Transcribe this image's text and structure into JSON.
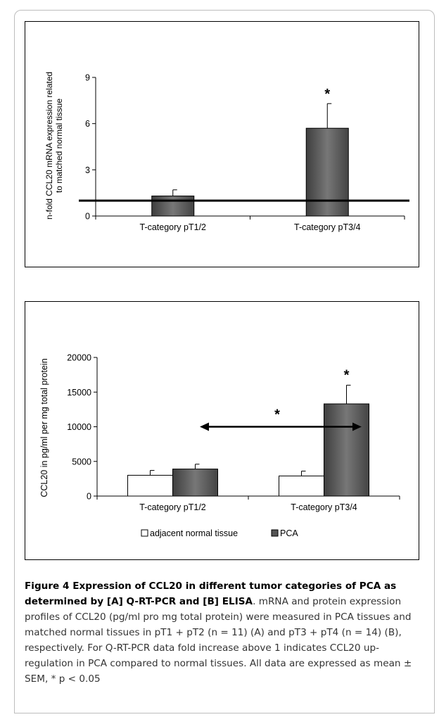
{
  "chart_data": [
    {
      "type": "bar",
      "panel": "A",
      "ylabel_line1": "n-fold CCL20 mRNA expression related",
      "ylabel_line2": "to matched normal tissue",
      "ylim": [
        0,
        9
      ],
      "yticks": [
        "0",
        "3",
        "6",
        "9"
      ],
      "categories": [
        "T-category pT1/2",
        "T-category pT3/4"
      ],
      "series": [
        {
          "values": [
            1.3,
            5.7
          ],
          "errors": [
            0.4,
            1.6
          ],
          "color": "#5a5a5a"
        }
      ],
      "reference_line": 1,
      "annotations": [
        {
          "text": "*",
          "category": "T-category pT3/4"
        }
      ]
    },
    {
      "type": "bar",
      "panel": "B",
      "ylabel": "CCL20 in pg/ml per mg total protein",
      "ylim": [
        0,
        20000
      ],
      "yticks": [
        "0",
        "5000",
        "10000",
        "15000",
        "20000"
      ],
      "categories": [
        "T-category pT1/2",
        "T-category pT3/4"
      ],
      "series": [
        {
          "name": "adjacent normal tissue",
          "values": [
            3000,
            2900
          ],
          "errors": [
            700,
            700
          ],
          "color": "#ffffff"
        },
        {
          "name": "PCA",
          "values": [
            3900,
            13300
          ],
          "errors": [
            700,
            2700
          ],
          "color": "#555555"
        }
      ],
      "legend_position": "bottom",
      "annotations": [
        {
          "text": "*",
          "category": "T-category pT3/4",
          "series": "PCA"
        },
        {
          "text": "*",
          "type": "double-arrow",
          "from_value": 10000
        }
      ]
    }
  ],
  "caption": {
    "title": "Figure 4 Expression of CCL20 in different tumor categories of PCA as determined by [A] Q-RT-PCR and [B] ELISA",
    "body": ". mRNA and protein expression profiles of CCL20 (pg/ml pro mg total protein) were measured in PCA tissues and matched normal tissues in pT1 + pT2 (n = 11) (A) and pT3 + pT4 (n = 14) (B), respectively. For Q-RT-PCR data fold increase above 1 indicates CCL20 up-regulation in PCA compared to normal tissues. All data are expressed as mean ± SEM, * p < 0.05"
  }
}
